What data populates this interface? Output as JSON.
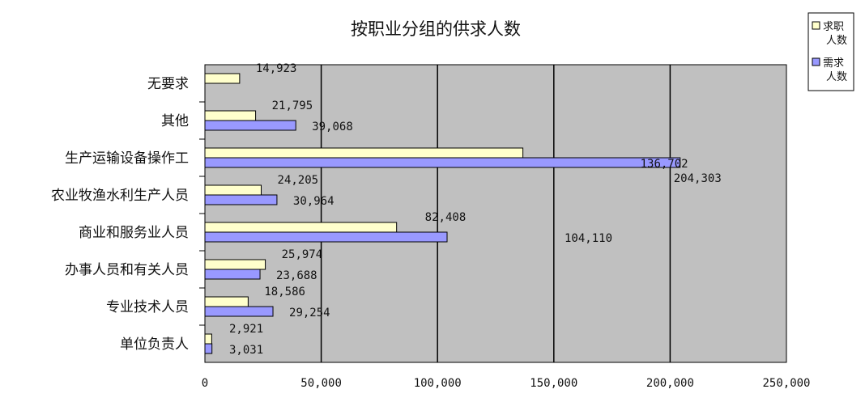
{
  "chart_data": {
    "type": "bar",
    "orientation": "horizontal",
    "title": "按职业分组的供求人数",
    "categories": [
      "单位负责人",
      "专业技术人员",
      "办事人员和有关人员",
      "商业和服务业人员",
      "农业牧渔水利生产人员",
      "生产运输设备操作工",
      "其他",
      "无要求"
    ],
    "series": [
      {
        "name": "求职人数",
        "name_lines": [
          "求职",
          "人数"
        ],
        "color": "#ffffcc",
        "values": [
          2921,
          18586,
          25974,
          82408,
          24205,
          136702,
          21795,
          14923
        ],
        "labels": [
          "2,921",
          "18,586",
          "25,974",
          "82,408",
          "24,205",
          "136,702",
          "21,795",
          "14,923"
        ]
      },
      {
        "name": "需求人数",
        "name_lines": [
          "需求",
          "人数"
        ],
        "color": "#9999ff",
        "values": [
          3031,
          29254,
          23688,
          104110,
          30964,
          204303,
          39068,
          null
        ],
        "labels": [
          "3,031",
          "29,254",
          "23,688",
          "104,110",
          "30,964",
          "204,303",
          "39,068",
          null
        ]
      }
    ],
    "xlim": [
      0,
      250000
    ],
    "xticks": [
      0,
      50000,
      100000,
      150000,
      200000,
      250000
    ],
    "xtick_labels": [
      "0",
      "50,000",
      "100,000",
      "150,000",
      "200,000",
      "250,000"
    ],
    "grid": true,
    "plot_background": "#c0c0c0",
    "legend_position": "top-right"
  }
}
